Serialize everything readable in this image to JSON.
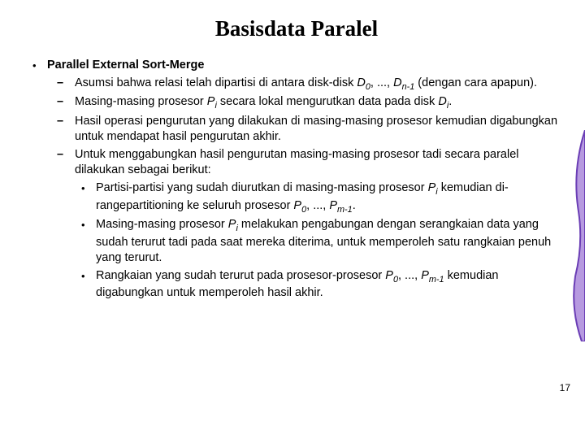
{
  "title": "Basisdata Paralel",
  "heading": "Parallel External Sort-Merge",
  "items": [
    {
      "pre": "Asumsi bahwa relasi telah dipartisi di antara disk-disk ",
      "sym1": "D",
      "sub1": "0",
      "mid1": ", ..., ",
      "sym2": "D",
      "sub2": "n-1",
      "post": " (dengan cara apapun)."
    },
    {
      "pre": "Masing-masing prosesor ",
      "sym1": "P",
      "sub1": "i",
      "mid1": " secara lokal mengurutkan data pada disk ",
      "sym2": "D",
      "sub2": "i",
      "post": "."
    },
    {
      "pre": "Hasil operasi pengurutan yang dilakukan di masing-masing prosesor kemudian digabungkan untuk mendapat hasil pengurutan akhir."
    },
    {
      "pre": "Untuk menggabungkan hasil pengurutan masing-masing prosesor tadi secara paralel dilakukan sebagai berikut:",
      "children": [
        {
          "pre": "Partisi-partisi yang sudah diurutkan di masing-masing prosesor ",
          "sym1": "P",
          "sub1": "i",
          "mid1": " kemudian di-rangepartitioning ke seluruh prosesor ",
          "sym2": "P",
          "sub2": "0",
          "mid2": ", ..., ",
          "sym3": "P",
          "sub3": "m-1",
          "post": "."
        },
        {
          "pre": "Masing-masing prosesor ",
          "sym1": "P",
          "sub1": "i",
          "mid1": " melakukan pengabungan dengan serangkaian data yang sudah terurut tadi pada saat mereka diterima, untuk memperoleh satu rangkaian penuh yang terurut."
        },
        {
          "pre": "Rangkaian yang sudah terurut pada prosesor-prosesor ",
          "sym1": "P",
          "sub1": "0",
          "mid1": ", ..., ",
          "sym2": "P",
          "sub2": "m-1",
          "post": " kemudian digabungkan untuk memperoleh hasil akhir."
        }
      ]
    }
  ],
  "pageNumber": "17",
  "colors": {
    "deco_stroke": "#6a3db5",
    "deco_fill": "#b79ae0"
  }
}
